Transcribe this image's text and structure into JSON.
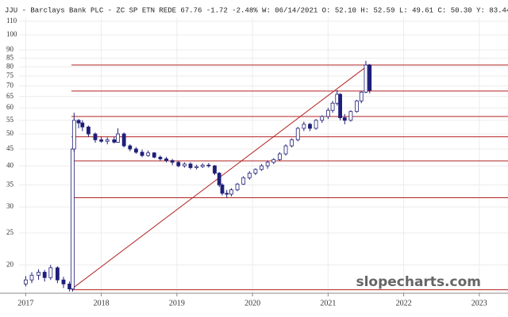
{
  "chart_data": {
    "type": "candlestick",
    "title": "JJU - Barclays Bank PLC - ZC SP ETN REDE 67.76 -1.72 -2.48% W: 06/14/2021 O: 52.10 H: 52.59 L: 49.61 C: 50.30 Y: 83.44",
    "watermark": "slopecharts.com",
    "log_scale": true,
    "grid": true,
    "xlim": [
      2016.66,
      2023.38
    ],
    "xticks": [
      2017,
      2018,
      2019,
      2020,
      2021,
      2022,
      2023
    ],
    "ylim": [
      16.4,
      113
    ],
    "yticks": [
      20,
      25,
      30,
      35,
      40,
      45,
      50,
      55,
      60,
      65,
      70,
      75,
      80,
      85,
      90,
      100,
      110
    ],
    "up_color": "#ffffff",
    "down_color": "#1f1f7a",
    "edge_color": "#1f1f7a",
    "line_color": "#b22222",
    "x": [
      2017.0,
      2017.08,
      2017.17,
      2017.25,
      2017.33,
      2017.42,
      2017.5,
      2017.58,
      2017.62,
      2017.64,
      2017.7,
      2017.75,
      2017.83,
      2017.92,
      2018.0,
      2018.08,
      2018.17,
      2018.22,
      2018.3,
      2018.38,
      2018.46,
      2018.54,
      2018.62,
      2018.7,
      2018.78,
      2018.86,
      2018.94,
      2019.02,
      2019.1,
      2019.18,
      2019.26,
      2019.34,
      2019.42,
      2019.5,
      2019.56,
      2019.6,
      2019.66,
      2019.72,
      2019.8,
      2019.88,
      2019.96,
      2020.04,
      2020.12,
      2020.2,
      2020.28,
      2020.36,
      2020.44,
      2020.52,
      2020.6,
      2020.68,
      2020.76,
      2020.84,
      2020.92,
      2021.0,
      2021.06,
      2021.12,
      2021.16,
      2021.22,
      2021.3,
      2021.38,
      2021.44,
      2021.5,
      2021.55
    ],
    "open": [
      17.5,
      18,
      18.6,
      19,
      18.3,
      19.6,
      18,
      17.5,
      16.9,
      45,
      55,
      54,
      52.5,
      50,
      48,
      47.5,
      48,
      47.2,
      50,
      46,
      45,
      44,
      43,
      43.8,
      42.5,
      42,
      41.5,
      41,
      40,
      40.5,
      39.5,
      39.8,
      40.2,
      40,
      38,
      35,
      33,
      32.8,
      33.8,
      35.2,
      36.8,
      38,
      39,
      40,
      41,
      41.8,
      43.5,
      46,
      48,
      52,
      53.5,
      52,
      55,
      56.5,
      59,
      62,
      66,
      56,
      55,
      58.5,
      63,
      67,
      81
    ],
    "high": [
      18.5,
      19,
      19.4,
      19.3,
      20,
      19.8,
      18.4,
      17.8,
      46,
      58,
      55.5,
      55,
      53,
      50.5,
      49,
      48.8,
      49,
      52,
      50.5,
      46.5,
      45.6,
      44.8,
      44.5,
      44,
      43,
      42.6,
      42,
      41.3,
      41,
      41,
      40.3,
      40.7,
      40.8,
      40.2,
      38.3,
      35.4,
      33.8,
      34.2,
      35.5,
      37.2,
      38.5,
      39.3,
      40.5,
      41.5,
      42.2,
      44,
      46.5,
      48.5,
      52.5,
      54.5,
      54,
      55.5,
      57,
      60,
      63,
      68,
      66.5,
      57.5,
      59,
      63.5,
      67.5,
      83.4,
      81.5
    ],
    "low": [
      17.2,
      17.6,
      18,
      17.8,
      18,
      17.6,
      17,
      16.6,
      16.6,
      44,
      52,
      51,
      49,
      47,
      47,
      46.5,
      46.8,
      47,
      45.5,
      44.3,
      43.5,
      42.5,
      42.6,
      42.2,
      41.5,
      41,
      40.2,
      39.6,
      39.5,
      39,
      39,
      39.4,
      39.5,
      37.5,
      34.5,
      32.5,
      32,
      32.3,
      33.5,
      35,
      36.3,
      37.5,
      38.6,
      39.2,
      40.5,
      41.5,
      43,
      45.5,
      47.5,
      51,
      51,
      51.5,
      54,
      55.5,
      58,
      61,
      55,
      53.5,
      54.5,
      58,
      62,
      66.5,
      66.5
    ],
    "close": [
      18,
      18.6,
      19,
      18.3,
      19.6,
      18,
      17.5,
      16.9,
      45,
      55,
      54,
      52.5,
      50,
      48,
      47.5,
      48,
      47.2,
      50,
      46,
      45,
      44,
      43,
      43.8,
      42.5,
      42,
      41.5,
      41,
      40,
      40.5,
      39.5,
      39.8,
      40.2,
      40,
      38,
      35,
      33,
      32.8,
      33.8,
      35.2,
      36.8,
      38,
      39,
      40,
      41,
      41.8,
      43.5,
      46,
      48,
      52,
      53.5,
      52,
      55,
      56.5,
      59,
      62,
      66,
      56,
      55,
      58.5,
      63,
      67,
      81,
      67.8
    ],
    "hlines": [
      81,
      67.5,
      56.5,
      49,
      41.4,
      32,
      16.8
    ],
    "trendline": {
      "x": [
        2017.61,
        2021.55
      ],
      "y": [
        16.9,
        81.5
      ]
    }
  }
}
